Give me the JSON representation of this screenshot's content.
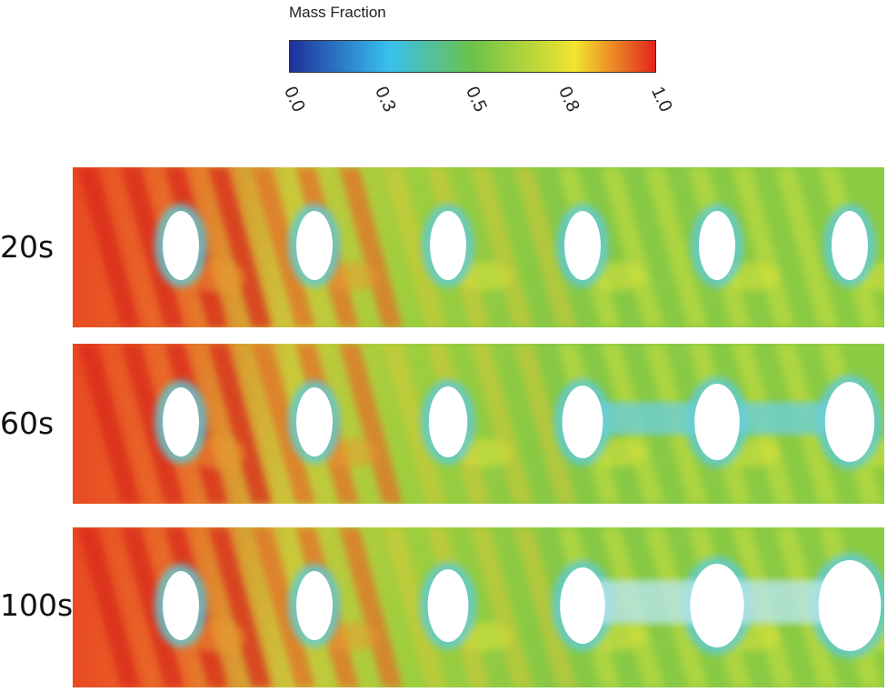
{
  "legend": {
    "title": "Mass Fraction",
    "ticks": [
      "0.0",
      "0.3",
      "0.5",
      "0.8",
      "1.0"
    ],
    "colors": [
      "#1f2f9a",
      "#38c0ef",
      "#6cc24a",
      "#f2e52e",
      "#e3241c"
    ]
  },
  "panels": [
    {
      "label": "20s",
      "time_s": 20
    },
    {
      "label": "60s",
      "time_s": 60
    },
    {
      "label": "100s",
      "time_s": 100
    }
  ]
}
